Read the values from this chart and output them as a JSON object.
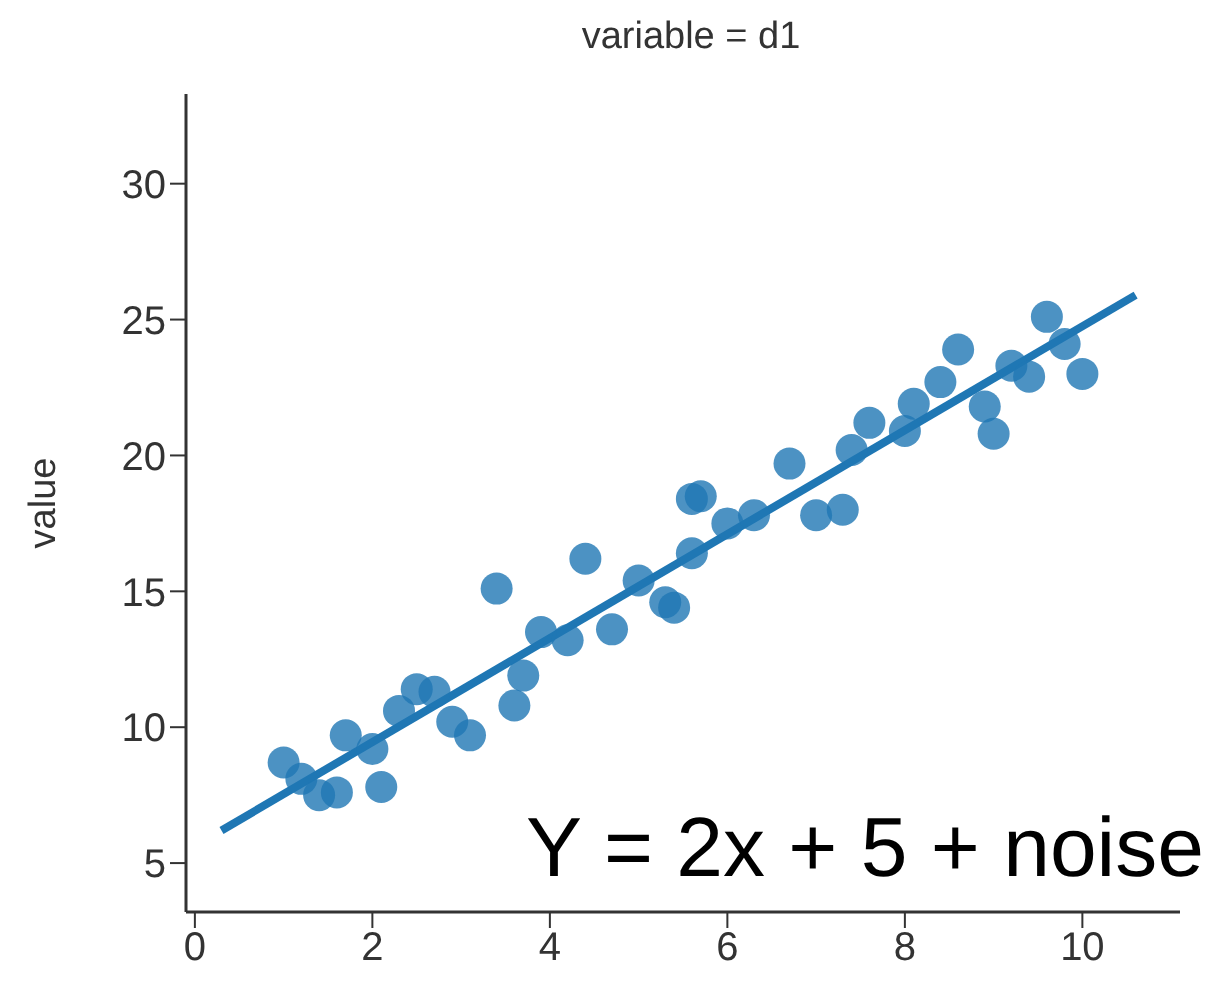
{
  "chart_data": {
    "type": "scatter",
    "title": "variable = d1",
    "ylabel": "value",
    "annotations": [
      "Y = 2x + 5 + noise"
    ],
    "xlim": [
      -0.1,
      11.1
    ],
    "ylim": [
      3.2,
      33.3
    ],
    "xticks": [
      0,
      2,
      4,
      6,
      8,
      10
    ],
    "yticks": [
      5,
      10,
      15,
      20,
      25,
      30
    ],
    "series": [
      {
        "marker": "circle",
        "color": "#1f77b4",
        "x": [
          1.0,
          1.2,
          1.4,
          1.6,
          1.7,
          2.0,
          2.1,
          2.3,
          2.5,
          2.7,
          2.9,
          3.1,
          3.4,
          3.6,
          3.7,
          3.9,
          4.2,
          4.4,
          4.7,
          5.0,
          5.3,
          5.4,
          5.6,
          5.6,
          5.7,
          6.0,
          6.3,
          6.7,
          7.0,
          7.3,
          7.4,
          7.6,
          8.0,
          8.1,
          8.4,
          8.6,
          8.9,
          9.0,
          9.2,
          9.4,
          9.6,
          9.8,
          10.0
        ],
        "values": [
          8.7,
          8.1,
          7.5,
          7.6,
          9.7,
          9.2,
          7.8,
          10.6,
          11.4,
          11.3,
          10.2,
          9.7,
          15.1,
          10.8,
          11.9,
          13.5,
          13.2,
          16.2,
          13.6,
          15.4,
          14.6,
          14.4,
          16.4,
          18.4,
          18.5,
          17.5,
          17.8,
          19.7,
          17.8,
          18.0,
          20.2,
          21.2,
          20.9,
          21.9,
          22.7,
          23.9,
          21.8,
          20.8,
          23.3,
          22.9,
          25.1,
          24.1,
          23.0
        ]
      },
      {
        "type": "line",
        "color": "#1f77b4",
        "x": [
          0.3,
          10.6
        ],
        "values": [
          6.2,
          25.9
        ]
      }
    ]
  }
}
